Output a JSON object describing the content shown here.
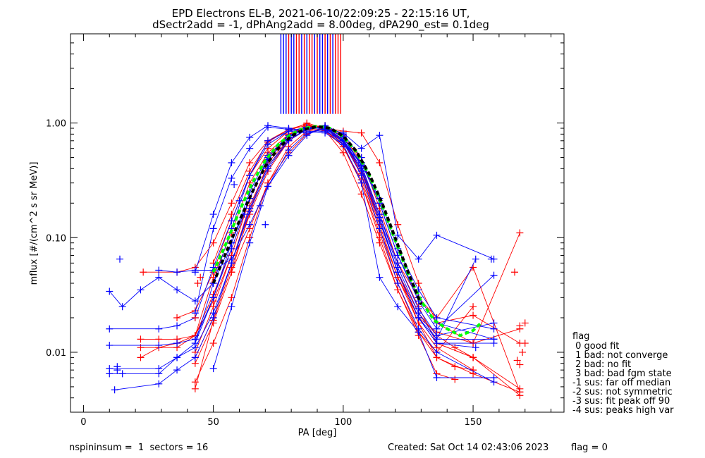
{
  "title_line1": "EPD Electrons EL-B, 2021-06-10/22:09:25 - 22:15:16 UT,",
  "title_line2": "dSectr2add = -1, dPhAng2add = 8.00deg, dPA290_est=   0.1deg",
  "footer": {
    "left": "nspininsum =  1  sectors = 16",
    "created": "Created: Sat Oct 14 02:43:06 2023",
    "flag": "flag = 0"
  },
  "legend": {
    "title": "flag",
    "items": [
      " 0 good fit",
      " 1 bad: not converge",
      " 2 bad: no fit",
      " 3 bad: bad fgm state",
      "-1 sus: far off median",
      "-2 sus: not symmetric",
      "-3 sus: fit peak off 90",
      "-4 sus: peaks high var"
    ]
  },
  "chart_data": {
    "type": "line",
    "xlabel": "PA [deg]",
    "ylabel": "mflux [#/(cm^2 s sr MeV)]",
    "xlim": [
      -5,
      185
    ],
    "ylim": [
      0.003,
      6.0
    ],
    "y_scale": "log",
    "x_ticks": [
      "0",
      "50",
      "100",
      "150"
    ],
    "x_tick_values": [
      0,
      50,
      100,
      150
    ],
    "y_ticks": [
      "0.01",
      "0.10",
      "1.00"
    ],
    "y_tick_values": [
      0.01,
      0.1,
      1.0
    ],
    "colors": {
      "red": "#ff0000",
      "blue": "#0000ff",
      "green": "#00ff00",
      "black": "#000000"
    },
    "series": [
      {
        "color": "red",
        "x": [
          43,
          50,
          57,
          64,
          71,
          79,
          86,
          93,
          100,
          107,
          114,
          121,
          129,
          136,
          143
        ],
        "y": [
          0.0048,
          0.019,
          0.055,
          0.16,
          0.38,
          0.7,
          0.88,
          0.86,
          0.55,
          0.24,
          0.09,
          0.035,
          0.014,
          0.0065,
          0.0058
        ]
      },
      {
        "color": "red",
        "x": [
          22,
          29,
          36,
          43,
          50,
          57,
          64,
          71,
          79,
          86,
          93,
          100,
          107,
          114,
          121,
          129,
          136,
          150,
          168
        ],
        "y": [
          0.009,
          0.011,
          0.012,
          0.014,
          0.045,
          0.11,
          0.3,
          0.55,
          0.8,
          0.92,
          0.93,
          0.7,
          0.35,
          0.14,
          0.05,
          0.02,
          0.012,
          0.009,
          0.0048
        ]
      },
      {
        "color": "red",
        "x": [
          23,
          36,
          43,
          50,
          57,
          64,
          71,
          79,
          86,
          93,
          100,
          107,
          114,
          121,
          129,
          136,
          150,
          168
        ],
        "y": [
          0.05,
          0.05,
          0.055,
          0.09,
          0.2,
          0.45,
          0.7,
          0.88,
          0.95,
          0.9,
          0.72,
          0.5,
          0.18,
          0.06,
          0.03,
          0.02,
          0.055,
          0.0045
        ]
      },
      {
        "color": "red",
        "x": [
          22,
          29,
          36,
          43,
          50,
          57,
          64,
          71,
          79,
          86,
          93,
          100,
          107,
          114,
          121,
          129,
          136,
          143,
          150
        ],
        "y": [
          0.013,
          0.013,
          0.013,
          0.014,
          0.028,
          0.07,
          0.22,
          0.5,
          0.78,
          0.95,
          0.92,
          0.65,
          0.3,
          0.1,
          0.035,
          0.015,
          0.009,
          0.0075,
          0.007
        ]
      },
      {
        "color": "red",
        "x": [
          36,
          43,
          50,
          57,
          64,
          71,
          79,
          86,
          93,
          100,
          107,
          114,
          121,
          129,
          136,
          150,
          168
        ],
        "y": [
          0.02,
          0.023,
          0.05,
          0.14,
          0.35,
          0.6,
          0.85,
          1.0,
          0.9,
          0.7,
          0.4,
          0.16,
          0.06,
          0.025,
          0.012,
          0.009,
          0.0042
        ]
      },
      {
        "color": "red",
        "x": [
          22,
          36,
          43,
          50,
          57,
          64,
          71,
          79,
          86,
          93,
          100,
          107,
          114,
          121,
          129,
          136,
          150,
          168
        ],
        "y": [
          0.011,
          0.011,
          0.014,
          0.032,
          0.08,
          0.22,
          0.48,
          0.78,
          0.92,
          0.95,
          0.78,
          0.45,
          0.2,
          0.07,
          0.03,
          0.018,
          0.021,
          0.012
        ]
      },
      {
        "color": "red",
        "x": [
          43,
          50,
          57,
          64,
          71,
          79,
          86,
          93,
          100,
          107,
          114,
          121,
          129,
          136,
          150,
          168
        ],
        "y": [
          0.0055,
          0.012,
          0.03,
          0.1,
          0.3,
          0.62,
          0.85,
          0.9,
          0.68,
          0.38,
          0.15,
          0.05,
          0.018,
          0.009,
          0.0065,
          0.0045
        ]
      },
      {
        "color": "red",
        "x": [
          43,
          50,
          57,
          64,
          71,
          79,
          86,
          93,
          100,
          107,
          114,
          121,
          129,
          136,
          150
        ],
        "y": [
          0.008,
          0.018,
          0.05,
          0.17,
          0.45,
          0.72,
          0.88,
          0.86,
          0.62,
          0.3,
          0.11,
          0.04,
          0.015,
          0.01,
          0.025
        ]
      },
      {
        "color": "red",
        "x": [
          43,
          50,
          57,
          64,
          71,
          79,
          86,
          93,
          100,
          107,
          114,
          121,
          129,
          136,
          143,
          150
        ],
        "y": [
          0.01,
          0.025,
          0.07,
          0.22,
          0.5,
          0.8,
          0.95,
          0.92,
          0.72,
          0.4,
          0.14,
          0.05,
          0.022,
          0.014,
          0.011,
          0.009
        ]
      },
      {
        "color": "red",
        "x": [
          50,
          57,
          64,
          71,
          79,
          86,
          93,
          100,
          107,
          114,
          121,
          129,
          136,
          150,
          168
        ],
        "y": [
          0.06,
          0.16,
          0.38,
          0.68,
          0.88,
          0.98,
          0.88,
          0.62,
          0.32,
          0.12,
          0.045,
          0.02,
          0.015,
          0.012,
          0.016
        ]
      },
      {
        "color": "red",
        "x": [
          43,
          50,
          57,
          64,
          71,
          79,
          86,
          93,
          100,
          107,
          114,
          121,
          129,
          136,
          150
        ],
        "y": [
          0.009,
          0.02,
          0.06,
          0.19,
          0.42,
          0.7,
          0.9,
          0.9,
          0.7,
          0.36,
          0.13,
          0.045,
          0.018,
          0.011,
          0.007
        ]
      },
      {
        "color": "red",
        "x": [
          57,
          64,
          71,
          79,
          86,
          93,
          100,
          107,
          114,
          121,
          129,
          136,
          150,
          168
        ],
        "y": [
          0.05,
          0.12,
          0.3,
          0.55,
          0.8,
          0.9,
          0.85,
          0.82,
          0.45,
          0.13,
          0.04,
          0.018,
          0.012,
          0.11
        ]
      },
      {
        "color": "blue",
        "x": [
          10,
          15,
          29,
          36,
          43,
          50,
          57,
          64,
          71,
          79,
          86,
          93,
          100,
          107,
          114,
          121,
          129,
          136,
          158
        ],
        "y": [
          0.0065,
          0.0065,
          0.0065,
          0.009,
          0.012,
          0.03,
          0.09,
          0.25,
          0.52,
          0.78,
          0.9,
          0.92,
          0.72,
          0.4,
          0.15,
          0.05,
          0.02,
          0.012,
          0.012
        ]
      },
      {
        "color": "blue",
        "x": [
          10,
          29,
          36,
          43,
          50,
          57,
          64,
          71,
          79,
          86,
          93,
          100,
          107,
          114,
          121,
          129,
          136,
          158
        ],
        "y": [
          0.016,
          0.016,
          0.017,
          0.02,
          0.055,
          0.14,
          0.35,
          0.65,
          0.85,
          0.92,
          0.9,
          0.68,
          0.35,
          0.12,
          0.04,
          0.016,
          0.01,
          0.0055
        ]
      },
      {
        "color": "blue",
        "x": [
          10,
          29,
          36,
          43,
          50,
          57,
          64,
          71,
          79,
          86,
          93,
          100,
          107,
          114,
          121,
          129,
          136,
          151
        ],
        "y": [
          0.0072,
          0.0072,
          0.009,
          0.011,
          0.022,
          0.06,
          0.18,
          0.42,
          0.72,
          0.88,
          0.92,
          0.75,
          0.42,
          0.16,
          0.055,
          0.022,
          0.013,
          0.065
        ]
      },
      {
        "color": "blue",
        "x": [
          10,
          15,
          22,
          29,
          36,
          43,
          50,
          57,
          64,
          71,
          79,
          86,
          93,
          100,
          107,
          114,
          121,
          129,
          136,
          158
        ],
        "y": [
          0.034,
          0.025,
          0.035,
          0.045,
          0.035,
          0.028,
          0.04,
          0.09,
          0.22,
          0.48,
          0.75,
          0.9,
          0.9,
          0.7,
          0.38,
          0.14,
          0.05,
          0.02,
          0.013,
          0.013
        ]
      },
      {
        "color": "blue",
        "x": [
          12,
          29,
          36,
          43,
          50,
          57,
          64,
          71,
          79,
          86,
          93,
          100,
          107,
          114,
          121,
          129,
          136,
          158
        ],
        "y": [
          0.0047,
          0.0053,
          0.007,
          0.009,
          0.02,
          0.06,
          0.17,
          0.4,
          0.7,
          0.88,
          0.93,
          0.76,
          0.43,
          0.16,
          0.06,
          0.024,
          0.014,
          0.018
        ]
      },
      {
        "color": "blue",
        "x": [
          10,
          29,
          36,
          43,
          50,
          57,
          64,
          71,
          79,
          86,
          93,
          100,
          107,
          114,
          121,
          129,
          136,
          151
        ],
        "y": [
          0.0115,
          0.0115,
          0.012,
          0.013,
          0.03,
          0.08,
          0.22,
          0.5,
          0.78,
          0.91,
          0.91,
          0.72,
          0.38,
          0.14,
          0.05,
          0.02,
          0.012,
          0.011
        ]
      },
      {
        "color": "blue",
        "x": [
          29,
          36,
          43,
          50,
          57,
          64,
          71,
          79,
          86,
          93,
          100,
          107,
          114,
          121,
          129,
          136,
          158
        ],
        "y": [
          0.052,
          0.05,
          0.052,
          0.052,
          0.065,
          0.13,
          0.28,
          0.52,
          0.78,
          0.95,
          0.8,
          0.5,
          0.2,
          0.07,
          0.028,
          0.016,
          0.047
        ]
      },
      {
        "color": "blue",
        "x": [
          43,
          50,
          57,
          64,
          71,
          79,
          86,
          93,
          100,
          107,
          114,
          121,
          129,
          136,
          158
        ],
        "y": [
          0.05,
          0.16,
          0.45,
          0.75,
          0.95,
          0.9,
          0.85,
          0.82,
          0.65,
          0.45,
          0.2,
          0.07,
          0.03,
          0.018,
          0.013
        ]
      },
      {
        "color": "blue",
        "x": [
          43,
          50,
          57,
          64,
          71,
          79,
          86,
          93,
          100,
          107,
          114,
          121,
          129,
          136,
          158
        ],
        "y": [
          0.022,
          0.12,
          0.33,
          0.6,
          0.92,
          0.88,
          0.82,
          0.85,
          0.7,
          0.45,
          0.22,
          0.08,
          0.035,
          0.02,
          0.016
        ]
      },
      {
        "color": "blue",
        "x": [
          50,
          57,
          64,
          71,
          79,
          86,
          93,
          100,
          107,
          114,
          121,
          129,
          136,
          158
        ],
        "y": [
          0.0072,
          0.025,
          0.09,
          0.28,
          0.58,
          0.82,
          0.9,
          0.82,
          0.6,
          0.78,
          0.105,
          0.065,
          0.105,
          0.065
        ]
      },
      {
        "color": "blue",
        "x": [
          43,
          50,
          57,
          64,
          71,
          79,
          86,
          93,
          100,
          107,
          114,
          121,
          129,
          136,
          158
        ],
        "y": [
          0.012,
          0.04,
          0.12,
          0.35,
          0.7,
          0.85,
          0.82,
          0.88,
          0.65,
          0.3,
          0.045,
          0.025,
          0.015,
          0.006,
          0.006
        ]
      }
    ],
    "fits": [
      {
        "color": "green",
        "x": [
          50,
          55,
          60,
          65,
          70,
          75,
          80,
          85,
          90,
          95,
          100,
          105,
          110,
          115,
          120,
          125,
          130,
          135,
          140,
          145,
          150,
          153
        ],
        "y": [
          0.05,
          0.09,
          0.17,
          0.3,
          0.47,
          0.65,
          0.8,
          0.9,
          0.94,
          0.9,
          0.76,
          0.56,
          0.35,
          0.19,
          0.095,
          0.048,
          0.028,
          0.019,
          0.016,
          0.014,
          0.0155,
          0.018
        ]
      },
      {
        "color": "black",
        "x": [
          50,
          55,
          60,
          65,
          70,
          75,
          80,
          85,
          90,
          95,
          100,
          105,
          110,
          115,
          120,
          125,
          130
        ],
        "y": [
          0.04,
          0.075,
          0.14,
          0.25,
          0.42,
          0.6,
          0.77,
          0.88,
          0.93,
          0.9,
          0.77,
          0.57,
          0.36,
          0.2,
          0.1,
          0.05,
          0.026
        ]
      }
    ],
    "red_markers": [
      [
        43,
        0.02
      ],
      [
        44,
        0.04
      ],
      [
        45,
        0.045
      ],
      [
        166,
        0.05
      ],
      [
        168,
        0.017
      ],
      [
        170,
        0.018
      ],
      [
        170,
        0.012
      ],
      [
        167,
        0.0085
      ],
      [
        168,
        0.0078
      ],
      [
        169,
        0.01
      ]
    ],
    "blue_markers": [
      [
        14,
        0.065
      ],
      [
        157,
        0.065
      ],
      [
        13,
        0.007
      ],
      [
        13,
        0.0075
      ],
      [
        58,
        0.29
      ],
      [
        60,
        0.21
      ],
      [
        62,
        0.16
      ],
      [
        68,
        0.19
      ],
      [
        70,
        0.13
      ]
    ],
    "vlines_x": [
      76,
      77,
      78,
      79,
      80,
      81,
      82,
      83,
      84,
      85,
      86,
      87,
      88,
      89,
      90,
      91,
      92,
      93,
      94,
      95,
      96,
      97,
      98,
      99
    ],
    "vline_colors": [
      "blue",
      "blue",
      "blue",
      "red",
      "blue",
      "blue",
      "red",
      "red",
      "blue",
      "red",
      "blue",
      "red",
      "red",
      "blue",
      "red",
      "blue",
      "blue",
      "red",
      "blue",
      "red",
      "blue",
      "red",
      "red",
      "red"
    ],
    "vlines_y": [
      1.2,
      6.0
    ]
  }
}
